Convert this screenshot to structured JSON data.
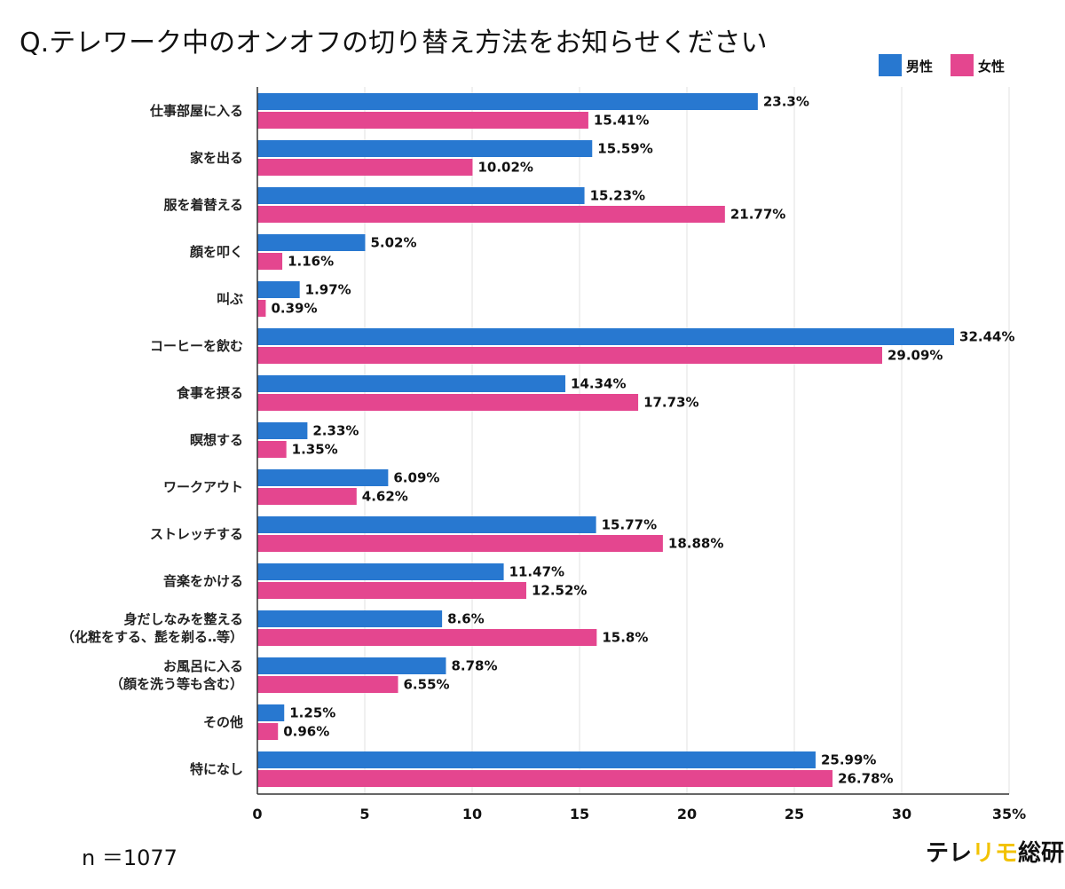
{
  "title": "Q.テレワーク中のオンオフの切り替え方法をお知らせください",
  "note": "n ＝1077",
  "logo": {
    "part1": "テレ",
    "part2": "リモ",
    "part3": "総研",
    "accent_color": "#f2c200",
    "text_color": "#111111"
  },
  "legend": [
    {
      "label": "男性",
      "color": "#2878d0"
    },
    {
      "label": "女性",
      "color": "#e4468f"
    }
  ],
  "chart_data": {
    "type": "bar",
    "orientation": "horizontal",
    "title": "Q.テレワーク中のオンオフの切り替え方法をお知らせください",
    "legend_position": "top-right",
    "grid": true,
    "xlim": [
      0,
      35
    ],
    "x_ticks": [
      "0",
      "5",
      "10",
      "15",
      "20",
      "25",
      "30",
      "35%"
    ],
    "x_tick_values": [
      0,
      5,
      10,
      15,
      20,
      25,
      30,
      35
    ],
    "categories": [
      [
        "仕事部屋に入る"
      ],
      [
        "家を出る"
      ],
      [
        "服を着替える"
      ],
      [
        "顔を叩く"
      ],
      [
        "叫ぶ"
      ],
      [
        "コーヒーを飲む"
      ],
      [
        "食事を摂る"
      ],
      [
        "瞑想する"
      ],
      [
        "ワークアウト"
      ],
      [
        "ストレッチする"
      ],
      [
        "音楽をかける"
      ],
      [
        "身だしなみを整える",
        "（化粧をする、髭を剃る‥等）"
      ],
      [
        "お風呂に入る",
        "（顔を洗う等も含む）"
      ],
      [
        "その他"
      ],
      [
        "特になし"
      ]
    ],
    "series": [
      {
        "name": "男性",
        "color": "#2878d0",
        "values": [
          23.3,
          15.59,
          15.23,
          5.02,
          1.97,
          32.44,
          14.34,
          2.33,
          6.09,
          15.77,
          11.47,
          8.6,
          8.78,
          1.25,
          25.99
        ],
        "labels": [
          "23.3%",
          "15.59%",
          "15.23%",
          "5.02%",
          "1.97%",
          "32.44%",
          "14.34%",
          "2.33%",
          "6.09%",
          "15.77%",
          "11.47%",
          "8.6%",
          "8.78%",
          "1.25%",
          "25.99%"
        ]
      },
      {
        "name": "女性",
        "color": "#e4468f",
        "values": [
          15.41,
          10.02,
          21.77,
          1.16,
          0.39,
          29.09,
          17.73,
          1.35,
          4.62,
          18.88,
          12.52,
          15.8,
          6.55,
          0.96,
          26.78
        ],
        "labels": [
          "15.41%",
          "10.02%",
          "21.77%",
          "1.16%",
          "0.39%",
          "29.09%",
          "17.73%",
          "1.35%",
          "4.62%",
          "18.88%",
          "12.52%",
          "15.8%",
          "6.55%",
          "0.96%",
          "26.78%"
        ]
      }
    ]
  }
}
